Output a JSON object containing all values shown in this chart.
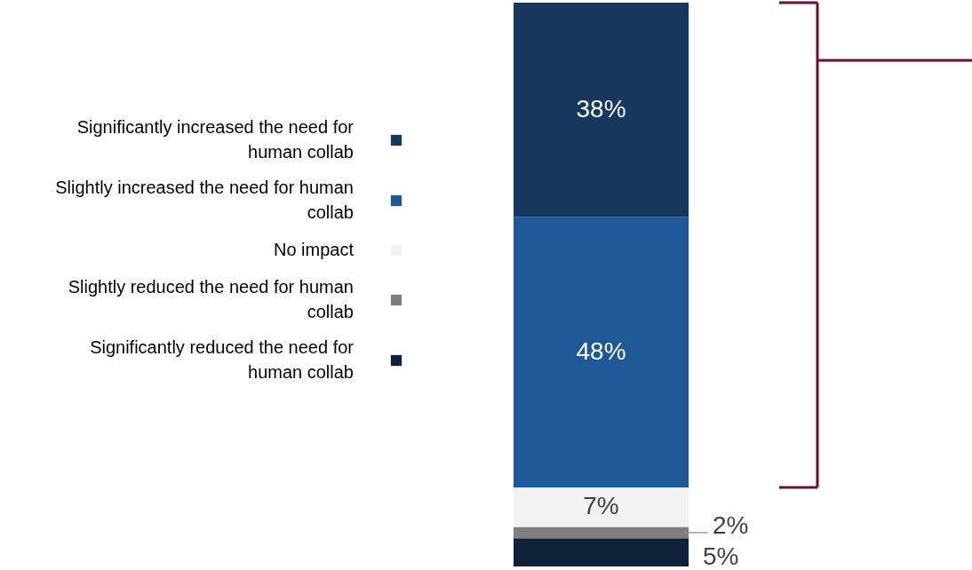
{
  "chart_data": {
    "type": "bar",
    "stacked": true,
    "categories": [
      null
    ],
    "legend": "left",
    "series": [
      {
        "name": "Significantly reduced the need for human collab",
        "color": "#0f2139",
        "values": [
          5
        ],
        "value_labels": [
          "5%"
        ]
      },
      {
        "name": "Slightly reduced the need for human collab",
        "color": "#7f7f7f",
        "values": [
          2
        ],
        "value_labels": [
          "2%"
        ]
      },
      {
        "name": "No impact",
        "color": "#f2f2f2",
        "values": [
          7
        ],
        "value_labels": [
          "7%"
        ]
      },
      {
        "name": "Slightly increased the need for human collab",
        "color": "#1f5896",
        "values": [
          48
        ],
        "value_labels": [
          "48%"
        ]
      },
      {
        "name": "Significantly increased the need for human collab",
        "color": "#16375e",
        "values": [
          38
        ],
        "value_labels": [
          "38%"
        ]
      }
    ]
  }
}
